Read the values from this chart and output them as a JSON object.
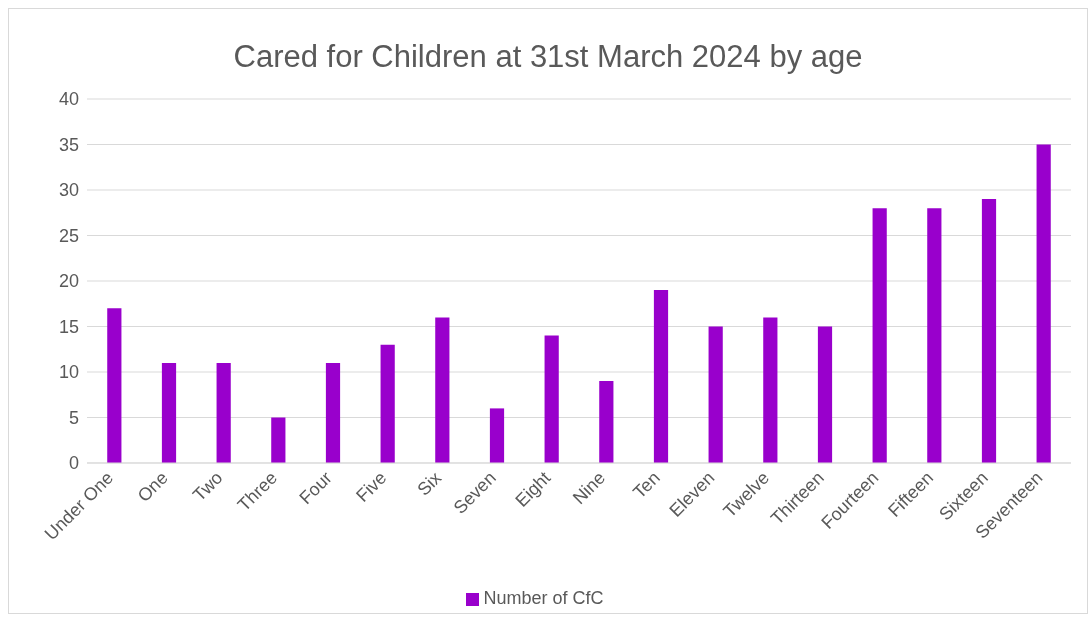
{
  "chart_data": {
    "type": "bar",
    "title": "Cared for Children at 31st March 2024 by age",
    "categories": [
      "Under One",
      "One",
      "Two",
      "Three",
      "Four",
      "Five",
      "Six",
      "Seven",
      "Eight",
      "Nine",
      "Ten",
      "Eleven",
      "Twelve",
      "Thirteen",
      "Fourteen",
      "Fifteen",
      "Sixteen",
      "Seventeen"
    ],
    "series": [
      {
        "name": "Number of CfC",
        "color": "#9900cc",
        "values": [
          17,
          11,
          11,
          5,
          11,
          13,
          16,
          6,
          14,
          9,
          19,
          15,
          16,
          15,
          28,
          28,
          29,
          35
        ]
      }
    ],
    "ylim": [
      0,
      40
    ],
    "yticks": [
      0,
      5,
      10,
      15,
      20,
      25,
      30,
      35,
      40
    ],
    "grid": "y",
    "legend": "bottom"
  }
}
